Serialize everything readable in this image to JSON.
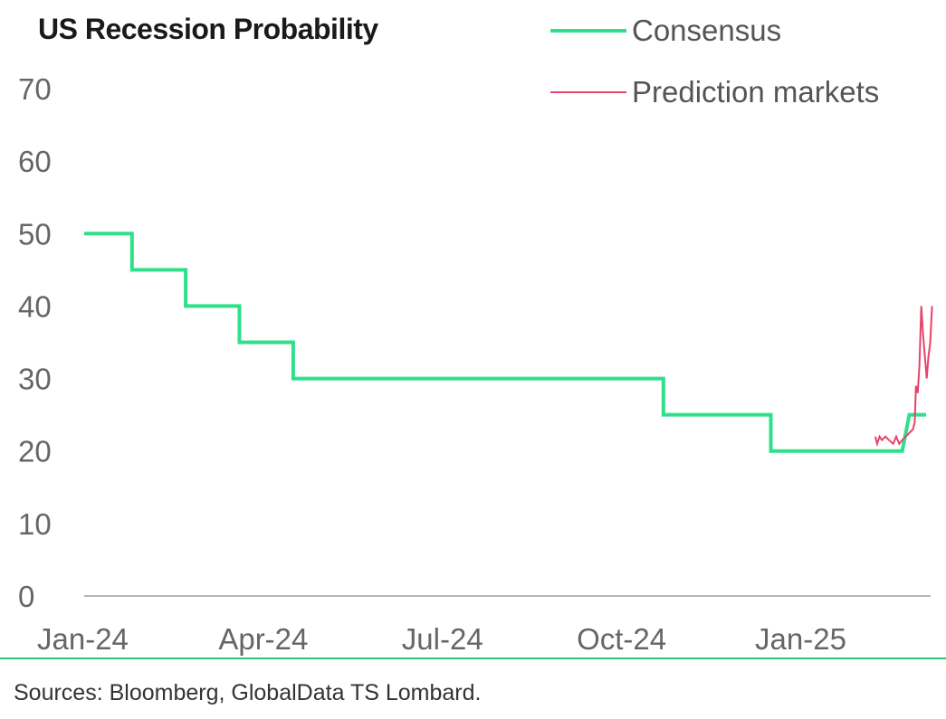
{
  "chart_data": {
    "type": "line",
    "title": "US Recession Probability",
    "xlabel": "",
    "ylabel": "",
    "ylim": [
      0,
      70
    ],
    "yticks": [
      0,
      10,
      20,
      30,
      40,
      50,
      60,
      70
    ],
    "xlim": [
      0,
      14.1
    ],
    "xticks": [
      {
        "label": "Jan-24",
        "value": 0
      },
      {
        "label": "Apr-24",
        "value": 3
      },
      {
        "label": "Jul-24",
        "value": 6
      },
      {
        "label": "Oct-24",
        "value": 9
      },
      {
        "label": "Jan-25",
        "value": 12
      }
    ],
    "series": [
      {
        "name": "Consensus",
        "color": "#2ee08a",
        "style": "step",
        "points": [
          [
            0,
            50
          ],
          [
            0.8,
            50
          ],
          [
            0.8,
            45
          ],
          [
            1.7,
            45
          ],
          [
            1.7,
            40
          ],
          [
            2.6,
            40
          ],
          [
            2.6,
            35
          ],
          [
            3.5,
            35
          ],
          [
            3.5,
            30
          ],
          [
            9.7,
            30
          ],
          [
            9.7,
            25
          ],
          [
            11.5,
            25
          ],
          [
            11.5,
            20
          ],
          [
            13.7,
            20
          ],
          [
            13.82,
            25
          ],
          [
            14.1,
            25
          ]
        ]
      },
      {
        "name": "Prediction markets",
        "color": "#e8426b",
        "style": "line",
        "points": [
          [
            13.25,
            22
          ],
          [
            13.28,
            21
          ],
          [
            13.32,
            22
          ],
          [
            13.36,
            21.5
          ],
          [
            13.42,
            22
          ],
          [
            13.48,
            21.5
          ],
          [
            13.55,
            21
          ],
          [
            13.6,
            22
          ],
          [
            13.65,
            21
          ],
          [
            13.7,
            21.5
          ],
          [
            13.76,
            22
          ],
          [
            13.82,
            22.5
          ],
          [
            13.88,
            23
          ],
          [
            13.91,
            24
          ],
          [
            13.93,
            29
          ],
          [
            13.96,
            28
          ],
          [
            13.99,
            32
          ],
          [
            14.02,
            40
          ],
          [
            14.05,
            36
          ],
          [
            14.08,
            33
          ],
          [
            14.11,
            30
          ],
          [
            14.14,
            33
          ],
          [
            14.17,
            35
          ],
          [
            14.2,
            40
          ]
        ]
      }
    ],
    "legend": {
      "position": "top-right"
    }
  },
  "footer": {
    "sources": "Sources: Bloomberg, GlobalData TS Lombard."
  }
}
